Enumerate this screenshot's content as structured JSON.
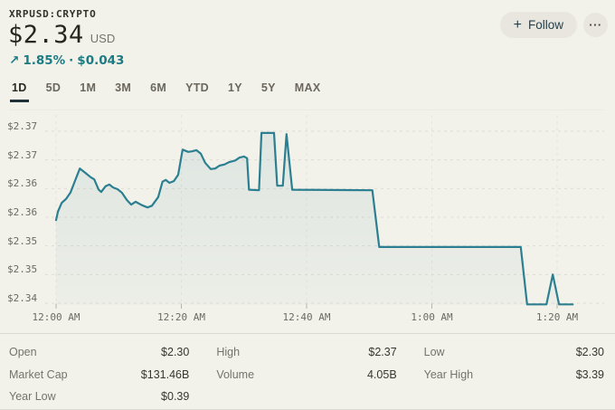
{
  "header": {
    "ticker": "XRPUSD:CRYPTO",
    "price": "$2.34",
    "currency_label": "USD",
    "change_arrow": "↗",
    "change_percent": "1.85%",
    "change_separator": "·",
    "change_amount": "$0.043",
    "follow_button": {
      "plus": "+",
      "label": "Follow"
    },
    "more_button": "···"
  },
  "range_tabs": [
    {
      "label": "1D",
      "active": true
    },
    {
      "label": "5D",
      "active": false
    },
    {
      "label": "1M",
      "active": false
    },
    {
      "label": "3M",
      "active": false
    },
    {
      "label": "6M",
      "active": false
    },
    {
      "label": "YTD",
      "active": false
    },
    {
      "label": "1Y",
      "active": false
    },
    {
      "label": "5Y",
      "active": false
    },
    {
      "label": "MAX",
      "active": false
    }
  ],
  "chart_data": {
    "type": "line",
    "title": "XRPUSD intraday price",
    "x_unit": "minutes since 12:00 AM",
    "ylim": [
      2.34,
      2.372
    ],
    "grid": true,
    "line_color": "#2c7f90",
    "change_color": "#1b7c83",
    "y_ticks": [
      {
        "label": "$2.37",
        "value": 2.37
      },
      {
        "label": "$2.37",
        "value": 2.365
      },
      {
        "label": "$2.36",
        "value": 2.36
      },
      {
        "label": "$2.36",
        "value": 2.355
      },
      {
        "label": "$2.35",
        "value": 2.35
      },
      {
        "label": "$2.35",
        "value": 2.345
      },
      {
        "label": "$2.34",
        "value": 2.34
      }
    ],
    "x_ticks": [
      {
        "label": "12:00 AM",
        "t": 0
      },
      {
        "label": "12:20 AM",
        "t": 20
      },
      {
        "label": "12:40 AM",
        "t": 40
      },
      {
        "label": "1:00 AM",
        "t": 60
      },
      {
        "label": "1:20 AM",
        "t": 80
      }
    ],
    "points": [
      [
        0,
        2.3545
      ],
      [
        0.3,
        2.356
      ],
      [
        0.9,
        2.3575
      ],
      [
        1.6,
        2.3582
      ],
      [
        2.3,
        2.3593
      ],
      [
        3.0,
        2.3613
      ],
      [
        3.8,
        2.3635
      ],
      [
        4.6,
        2.3628
      ],
      [
        5.5,
        2.362
      ],
      [
        6.1,
        2.3616
      ],
      [
        6.8,
        2.3598
      ],
      [
        7.2,
        2.3594
      ],
      [
        7.9,
        2.3604
      ],
      [
        8.5,
        2.3607
      ],
      [
        9.1,
        2.3602
      ],
      [
        9.8,
        2.3599
      ],
      [
        10.5,
        2.3593
      ],
      [
        11.3,
        2.358
      ],
      [
        12.0,
        2.3572
      ],
      [
        12.7,
        2.3577
      ],
      [
        13.7,
        2.3571
      ],
      [
        14.6,
        2.3567
      ],
      [
        15.3,
        2.357
      ],
      [
        16.3,
        2.3585
      ],
      [
        17.0,
        2.3612
      ],
      [
        17.5,
        2.3615
      ],
      [
        18.1,
        2.361
      ],
      [
        18.8,
        2.3613
      ],
      [
        19.5,
        2.3624
      ],
      [
        20.2,
        2.3668
      ],
      [
        21.1,
        2.3664
      ],
      [
        21.7,
        2.3665
      ],
      [
        22.4,
        2.3667
      ],
      [
        23.1,
        2.3661
      ],
      [
        23.8,
        2.3645
      ],
      [
        24.7,
        2.3634
      ],
      [
        25.4,
        2.3635
      ],
      [
        26.1,
        2.364
      ],
      [
        26.9,
        2.3642
      ],
      [
        27.6,
        2.3646
      ],
      [
        28.6,
        2.3649
      ],
      [
        29.3,
        2.3654
      ],
      [
        30.0,
        2.3656
      ],
      [
        30.5,
        2.3653
      ],
      [
        30.8,
        2.3598
      ],
      [
        32.4,
        2.3597
      ],
      [
        32.8,
        2.3697
      ],
      [
        34.8,
        2.3697
      ],
      [
        35.3,
        2.3605
      ],
      [
        36.2,
        2.3605
      ],
      [
        36.8,
        2.3695
      ],
      [
        37.7,
        2.3598
      ],
      [
        50.5,
        2.3597
      ],
      [
        51.6,
        2.3498
      ],
      [
        74.2,
        2.3498
      ],
      [
        75.2,
        2.3398
      ],
      [
        78.3,
        2.3398
      ],
      [
        79.3,
        2.345
      ],
      [
        80.3,
        2.3398
      ],
      [
        82.5,
        2.3398
      ]
    ]
  },
  "stats": {
    "rows": [
      [
        {
          "label": "Open",
          "value": "$2.30"
        },
        {
          "label": "High",
          "value": "$2.37"
        },
        {
          "label": "Low",
          "value": "$2.30"
        }
      ],
      [
        {
          "label": "Market Cap",
          "value": "$131.46B"
        },
        {
          "label": "Volume",
          "value": "4.05B"
        },
        {
          "label": "Year High",
          "value": "$3.39"
        }
      ],
      [
        {
          "label": "Year Low",
          "value": "$0.39"
        },
        null,
        null
      ]
    ]
  },
  "colors": {
    "background": "#f2f1ea",
    "accent_teal": "#1b7c83",
    "chart_line": "#2c7f90",
    "active_tab_underline": "#20313a"
  }
}
